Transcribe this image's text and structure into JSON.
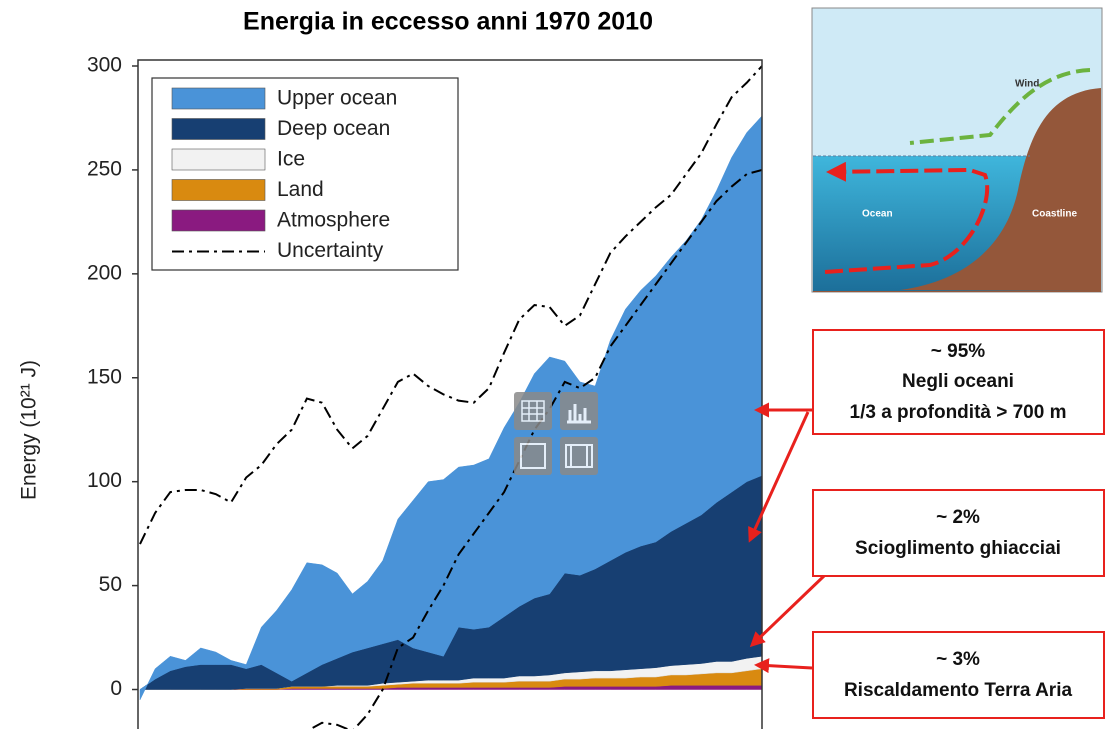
{
  "chart_data": {
    "type": "stacked-area",
    "title": "Energia in eccesso anni 1970  2010",
    "y_label": "Energy (10²¹ J)",
    "categories": [
      null,
      null,
      null,
      null,
      null,
      null,
      null,
      null,
      null,
      null,
      null,
      null,
      null,
      null,
      null,
      null,
      null,
      null,
      null,
      null,
      null,
      null,
      null,
      null,
      null,
      null,
      null,
      null,
      null,
      null,
      null,
      null,
      null,
      null,
      null,
      null,
      null,
      null,
      null,
      null,
      null,
      null
    ],
    "series": [
      {
        "name": "Upper ocean",
        "color": "#4a93d8",
        "values": [
          -5,
          5,
          7,
          3,
          8,
          6,
          2,
          2,
          18,
          30,
          44,
          53,
          48,
          41,
          28,
          32,
          40,
          58,
          71,
          82,
          85,
          77,
          79,
          81,
          91,
          98,
          108,
          114,
          102,
          93,
          88,
          106,
          117,
          123,
          128,
          132,
          136,
          142,
          150,
          161,
          168,
          173
        ]
      },
      {
        "name": "Deep ocean",
        "color": "#173f72",
        "values": [
          0,
          5,
          9,
          11,
          12,
          12,
          12,
          9.5,
          11.5,
          7.5,
          2.5,
          6.5,
          10.5,
          13,
          16,
          18,
          19,
          20.5,
          16,
          13.5,
          11.5,
          25.5,
          23.5,
          24.5,
          29.5,
          33.5,
          37.5,
          39,
          48,
          46.5,
          49,
          53,
          56.5,
          59,
          60.5,
          64.5,
          68,
          71.5,
          76.5,
          81.5,
          85,
          87
        ]
      },
      {
        "name": "Ice",
        "color": "#f2f2f2",
        "values": [
          0,
          0,
          0,
          0,
          0,
          0,
          0,
          0,
          0,
          0,
          0,
          0,
          0,
          0.5,
          0.5,
          0.5,
          1,
          1,
          1,
          1.5,
          1.5,
          1.5,
          2,
          2,
          2,
          2.5,
          2.5,
          3,
          3,
          3.5,
          3.5,
          3.5,
          4,
          4,
          4.5,
          4.5,
          5,
          5,
          5.5,
          5.5,
          6,
          6
        ]
      },
      {
        "name": "Land",
        "color": "#d98a10",
        "values": [
          0,
          0,
          0,
          0,
          0,
          0,
          0,
          0.5,
          0.5,
          0.5,
          1,
          1,
          1,
          1,
          1,
          1,
          1.5,
          1.5,
          2,
          2,
          2,
          2,
          2.5,
          2.5,
          2.5,
          3,
          3,
          3,
          3.5,
          3.5,
          4,
          4,
          4,
          4.5,
          4.5,
          5,
          5,
          5.5,
          6,
          6,
          7,
          8
        ]
      },
      {
        "name": "Atmosphere",
        "color": "#8a1a80",
        "values": [
          0,
          0,
          0,
          0,
          0,
          0,
          0,
          0,
          0,
          0,
          0.5,
          0.5,
          0.5,
          0.5,
          0.5,
          0.5,
          0.5,
          1,
          1,
          1,
          1,
          1,
          1,
          1,
          1,
          1,
          1,
          1,
          1.5,
          1.5,
          1.5,
          1.5,
          1.5,
          1.5,
          1.5,
          2,
          2,
          2,
          2,
          2,
          2,
          2
        ]
      }
    ],
    "uncertainty": {
      "name": "Uncertainty",
      "color": "#000000",
      "upper": [
        70,
        85,
        95,
        96,
        96,
        94,
        90,
        102,
        108,
        118,
        125,
        140,
        138,
        125,
        116,
        122,
        135,
        148,
        152,
        146,
        142,
        139,
        138,
        145,
        162,
        178,
        185,
        184,
        175,
        180,
        195,
        210,
        218,
        225,
        232,
        238,
        248,
        258,
        272,
        285,
        292,
        300
      ],
      "lower": [
        null,
        null,
        null,
        null,
        null,
        null,
        null,
        null,
        null,
        null,
        -25,
        -20,
        -16,
        -17,
        -20,
        -12,
        0,
        20,
        25,
        38,
        50,
        65,
        75,
        85,
        95,
        110,
        125,
        135,
        148,
        145,
        150,
        165,
        175,
        185,
        195,
        205,
        215,
        225,
        235,
        242,
        248,
        250
      ]
    },
    "ylim": [
      -19,
      300
    ],
    "yticks": [
      0,
      50,
      100,
      150,
      200,
      250,
      300
    ],
    "grid": false,
    "legend": "upper-left"
  },
  "diagram": {
    "labels": [
      "Wind",
      "Ocean",
      "Coastline"
    ]
  },
  "callouts": [
    {
      "lines": [
        "~ 95%",
        "Negli oceani",
        "1/3 a profondità > 700 m"
      ]
    },
    {
      "lines": [
        "~ 2%",
        "Scioglimento ghiacciai"
      ]
    },
    {
      "lines": [
        "~ 3%",
        "Riscaldamento Terra Aria"
      ]
    }
  ]
}
